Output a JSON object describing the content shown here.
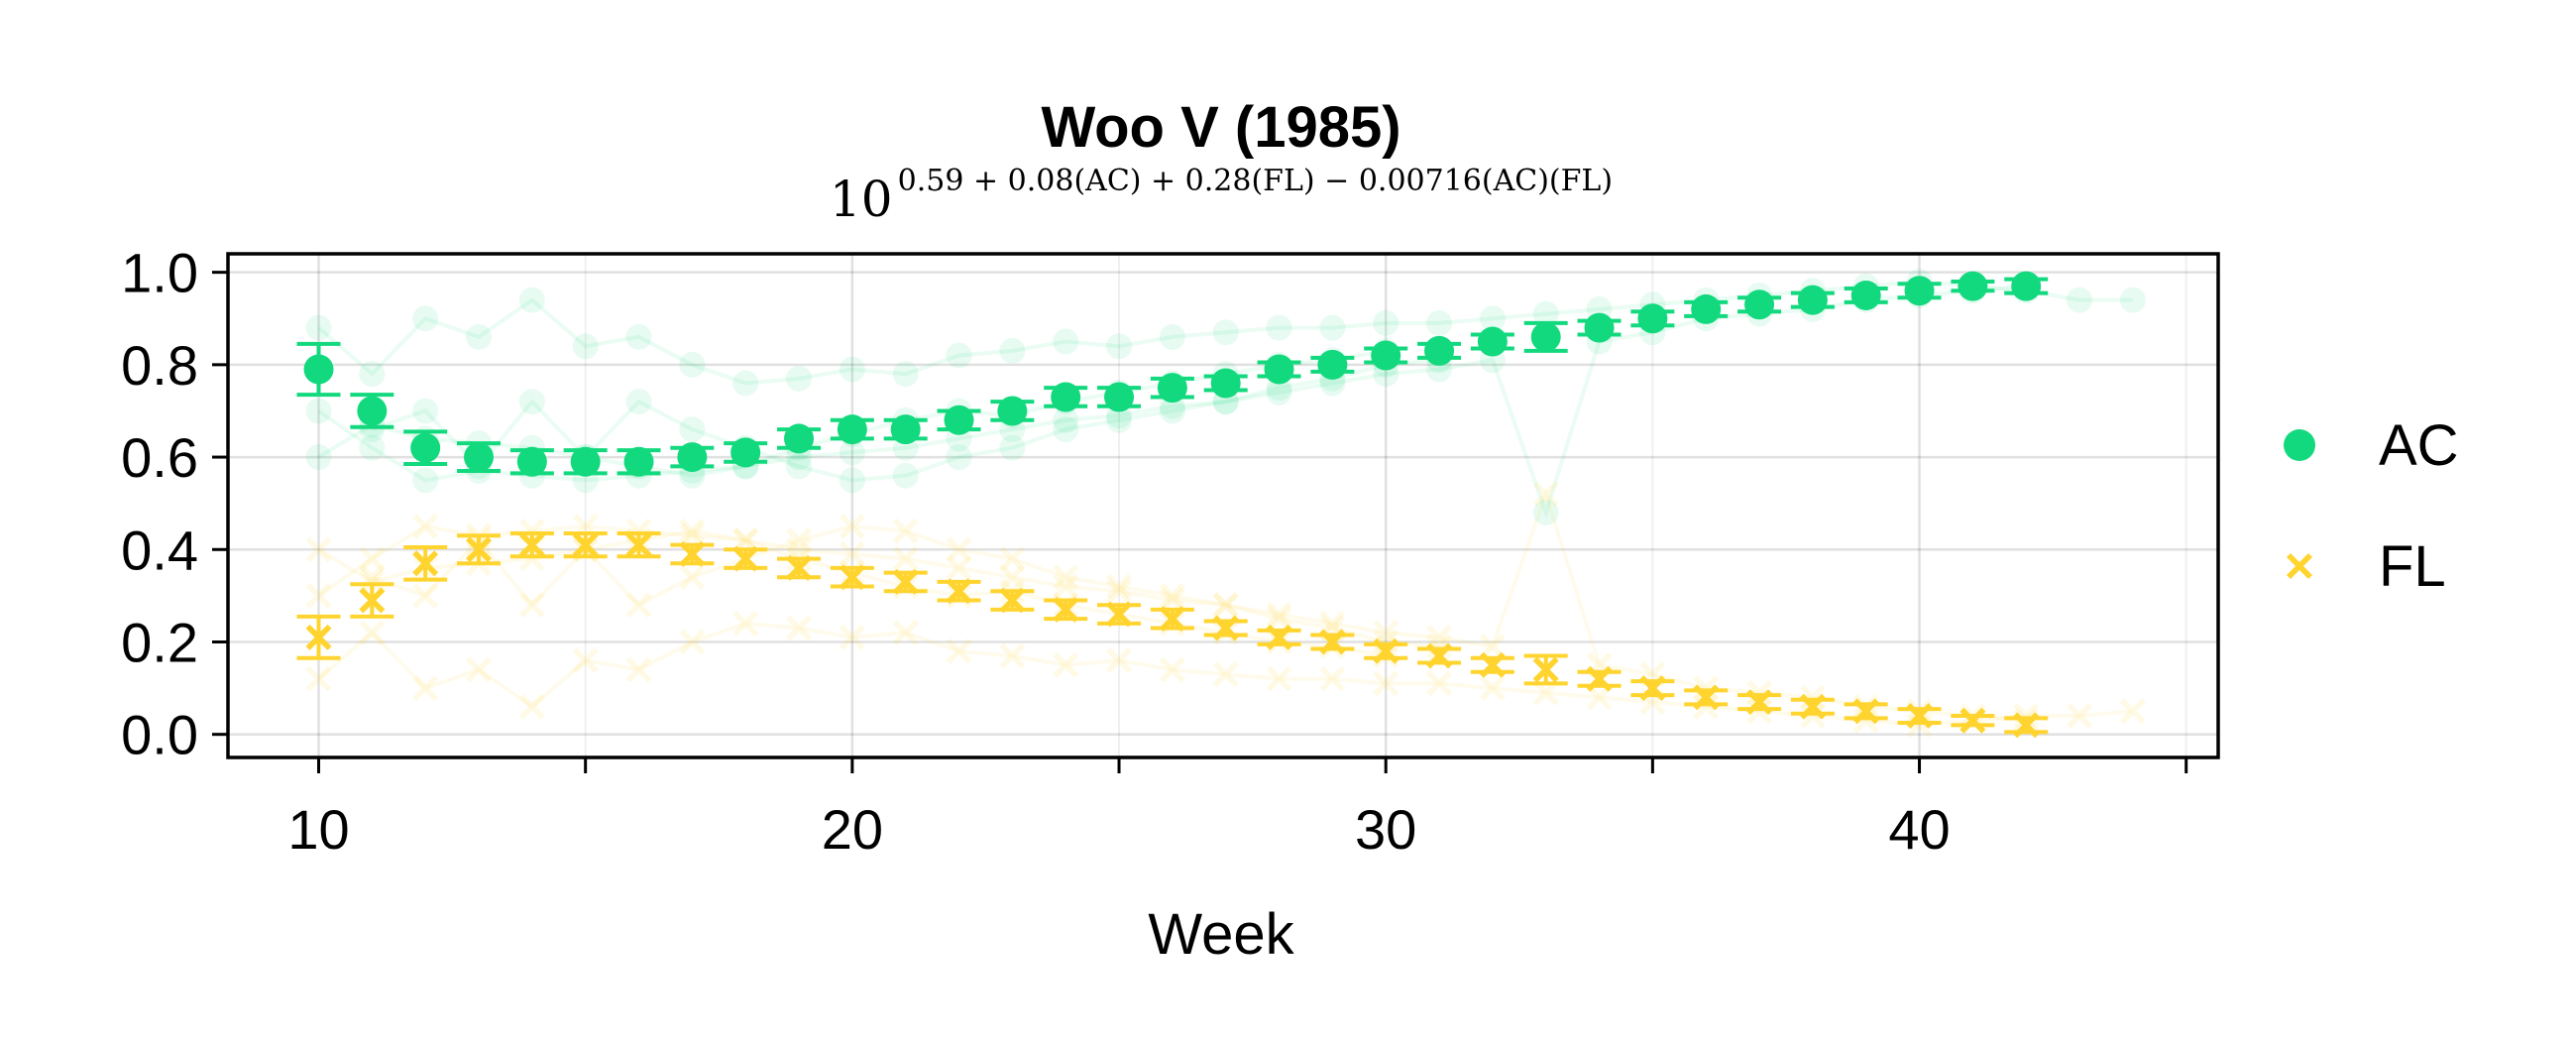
{
  "chart_data": {
    "type": "scatter",
    "title": "Woo V (1985)",
    "subtitle": {
      "base": "10",
      "exponent": "0.59 + 0.08(AC) + 0.28(FL) − 0.00716(AC)(FL)"
    },
    "xlabel": "Week",
    "ylabel": "",
    "xlim": [
      8.3,
      45.6
    ],
    "ylim": [
      -0.05,
      1.04
    ],
    "x_ticks": [
      10,
      20,
      30,
      40
    ],
    "x_minor_ticks": [
      15,
      25,
      35,
      45
    ],
    "y_ticks": [
      0.0,
      0.2,
      0.4,
      0.6,
      0.8,
      1.0
    ],
    "y_tick_labels": [
      "0.0",
      "0.2",
      "0.4",
      "0.6",
      "0.8",
      "1.0"
    ],
    "grid": true,
    "legend_position": "right",
    "series": [
      {
        "name": "AC",
        "marker": "circle",
        "color": "#12d97e",
        "x": [
          10,
          11,
          12,
          13,
          14,
          15,
          16,
          17,
          18,
          19,
          20,
          21,
          22,
          23,
          24,
          25,
          26,
          27,
          28,
          29,
          30,
          31,
          32,
          33,
          34,
          35,
          36,
          37,
          38,
          39,
          40,
          41,
          42
        ],
        "y": [
          0.79,
          0.7,
          0.62,
          0.6,
          0.59,
          0.59,
          0.59,
          0.6,
          0.61,
          0.64,
          0.66,
          0.66,
          0.68,
          0.7,
          0.73,
          0.73,
          0.75,
          0.76,
          0.79,
          0.8,
          0.82,
          0.83,
          0.85,
          0.86,
          0.88,
          0.9,
          0.92,
          0.93,
          0.94,
          0.95,
          0.96,
          0.97,
          0.97
        ],
        "err": [
          0.055,
          0.035,
          0.035,
          0.03,
          0.025,
          0.025,
          0.025,
          0.02,
          0.02,
          0.02,
          0.02,
          0.02,
          0.02,
          0.02,
          0.02,
          0.02,
          0.02,
          0.015,
          0.015,
          0.015,
          0.015,
          0.015,
          0.015,
          0.03,
          0.015,
          0.015,
          0.015,
          0.015,
          0.015,
          0.015,
          0.015,
          0.01,
          0.015
        ]
      },
      {
        "name": "FL",
        "marker": "x",
        "color": "#ffd42f",
        "x": [
          10,
          11,
          12,
          13,
          14,
          15,
          16,
          17,
          18,
          19,
          20,
          21,
          22,
          23,
          24,
          25,
          26,
          27,
          28,
          29,
          30,
          31,
          32,
          33,
          34,
          35,
          36,
          37,
          38,
          39,
          40,
          41,
          42
        ],
        "y": [
          0.21,
          0.29,
          0.37,
          0.4,
          0.41,
          0.41,
          0.41,
          0.39,
          0.38,
          0.36,
          0.34,
          0.33,
          0.31,
          0.29,
          0.27,
          0.26,
          0.25,
          0.23,
          0.21,
          0.2,
          0.18,
          0.17,
          0.15,
          0.14,
          0.12,
          0.1,
          0.08,
          0.07,
          0.06,
          0.05,
          0.04,
          0.03,
          0.02
        ],
        "err": [
          0.045,
          0.035,
          0.035,
          0.03,
          0.025,
          0.025,
          0.025,
          0.02,
          0.02,
          0.02,
          0.02,
          0.02,
          0.02,
          0.02,
          0.02,
          0.02,
          0.02,
          0.015,
          0.015,
          0.015,
          0.015,
          0.015,
          0.015,
          0.03,
          0.015,
          0.015,
          0.015,
          0.015,
          0.015,
          0.015,
          0.015,
          0.01,
          0.015
        ]
      }
    ],
    "background_traces": {
      "AC": [
        {
          "x": [
            10,
            11,
            12,
            13,
            14,
            15,
            16,
            17,
            18,
            19,
            20,
            21,
            22,
            23,
            24,
            25,
            26,
            27,
            28,
            29,
            30,
            31,
            32,
            33,
            34,
            35,
            36,
            37,
            38,
            39,
            40,
            41,
            42,
            43,
            44
          ],
          "y": [
            0.88,
            0.78,
            0.9,
            0.86,
            0.94,
            0.84,
            0.86,
            0.8,
            0.76,
            0.77,
            0.79,
            0.78,
            0.82,
            0.83,
            0.85,
            0.84,
            0.86,
            0.87,
            0.88,
            0.88,
            0.89,
            0.89,
            0.9,
            0.91,
            0.92,
            0.93,
            0.94,
            0.95,
            0.96,
            0.97,
            0.98,
            0.97,
            0.96,
            0.94,
            0.94
          ]
        },
        {
          "x": [
            10,
            11,
            12,
            13,
            14,
            15,
            16,
            17,
            18,
            19,
            20,
            21,
            22,
            23,
            24,
            25,
            26,
            27,
            28,
            29,
            30,
            31,
            32,
            33,
            34,
            35,
            36,
            37,
            38,
            39,
            40,
            41,
            42
          ],
          "y": [
            0.7,
            0.62,
            0.55,
            0.57,
            0.56,
            0.55,
            0.56,
            0.57,
            0.58,
            0.6,
            0.61,
            0.62,
            0.64,
            0.66,
            0.68,
            0.69,
            0.71,
            0.72,
            0.74,
            0.76,
            0.78,
            0.79,
            0.81,
            0.48,
            0.85,
            0.87,
            0.9,
            0.91,
            0.92,
            0.94,
            0.95,
            0.96,
            0.97
          ]
        },
        {
          "x": [
            11,
            12,
            13,
            14,
            15,
            16,
            17,
            18,
            19,
            20,
            21,
            22,
            23,
            24,
            25,
            26,
            27,
            28,
            29,
            30,
            31
          ],
          "y": [
            0.66,
            0.7,
            0.58,
            0.72,
            0.6,
            0.72,
            0.66,
            0.62,
            0.58,
            0.55,
            0.56,
            0.6,
            0.62,
            0.66,
            0.68,
            0.7,
            0.72,
            0.75,
            0.77,
            0.8,
            0.81
          ]
        },
        {
          "x": [
            10,
            11,
            12,
            13,
            14,
            15,
            16,
            17,
            18,
            19,
            20,
            21,
            22,
            23,
            24,
            25,
            26,
            27,
            28,
            29,
            30
          ],
          "y": [
            0.6,
            0.67,
            0.64,
            0.63,
            0.62,
            0.6,
            0.58,
            0.56,
            0.58,
            0.62,
            0.65,
            0.68,
            0.7,
            0.69,
            0.72,
            0.74,
            0.76,
            0.78,
            0.8,
            0.81,
            0.83
          ]
        }
      ],
      "FL": [
        {
          "x": [
            10,
            11,
            12,
            13,
            14,
            15,
            16,
            17,
            18,
            19,
            20,
            21,
            22,
            23,
            24,
            25,
            26,
            27,
            28,
            29,
            30,
            31,
            32,
            33,
            34,
            35,
            36,
            37,
            38,
            39,
            40,
            41,
            42,
            43,
            44
          ],
          "y": [
            0.12,
            0.22,
            0.1,
            0.14,
            0.06,
            0.16,
            0.14,
            0.2,
            0.24,
            0.23,
            0.21,
            0.22,
            0.18,
            0.17,
            0.15,
            0.16,
            0.14,
            0.13,
            0.12,
            0.12,
            0.11,
            0.11,
            0.1,
            0.09,
            0.08,
            0.07,
            0.06,
            0.05,
            0.04,
            0.03,
            0.02,
            0.03,
            0.04,
            0.04,
            0.05
          ]
        },
        {
          "x": [
            10,
            11,
            12,
            13,
            14,
            15,
            16,
            17,
            18,
            19,
            20,
            21,
            22,
            23,
            24,
            25,
            26,
            27,
            28,
            29,
            30,
            31,
            32,
            33,
            34,
            35,
            36,
            37,
            38,
            39,
            40,
            41,
            42
          ],
          "y": [
            0.3,
            0.38,
            0.45,
            0.43,
            0.44,
            0.45,
            0.44,
            0.43,
            0.42,
            0.4,
            0.39,
            0.38,
            0.36,
            0.34,
            0.32,
            0.31,
            0.29,
            0.28,
            0.26,
            0.24,
            0.22,
            0.21,
            0.19,
            0.52,
            0.15,
            0.13,
            0.1,
            0.09,
            0.08,
            0.06,
            0.05,
            0.04,
            0.03
          ]
        },
        {
          "x": [
            11,
            12,
            13,
            14,
            15,
            16,
            17,
            18,
            19,
            20,
            21,
            22,
            23,
            24,
            25,
            26,
            27,
            28,
            29,
            30,
            31
          ],
          "y": [
            0.34,
            0.3,
            0.42,
            0.28,
            0.4,
            0.28,
            0.34,
            0.38,
            0.42,
            0.45,
            0.44,
            0.4,
            0.38,
            0.34,
            0.32,
            0.3,
            0.28,
            0.25,
            0.23,
            0.2,
            0.19
          ]
        },
        {
          "x": [
            10,
            11,
            12,
            13,
            14,
            15,
            16,
            17,
            18,
            19,
            20,
            21,
            22,
            23,
            24,
            25,
            26,
            27,
            28,
            29,
            30
          ],
          "y": [
            0.4,
            0.33,
            0.36,
            0.37,
            0.38,
            0.4,
            0.42,
            0.44,
            0.42,
            0.38,
            0.35,
            0.32,
            0.3,
            0.31,
            0.28,
            0.26,
            0.24,
            0.22,
            0.2,
            0.19,
            0.17
          ]
        }
      ]
    }
  }
}
